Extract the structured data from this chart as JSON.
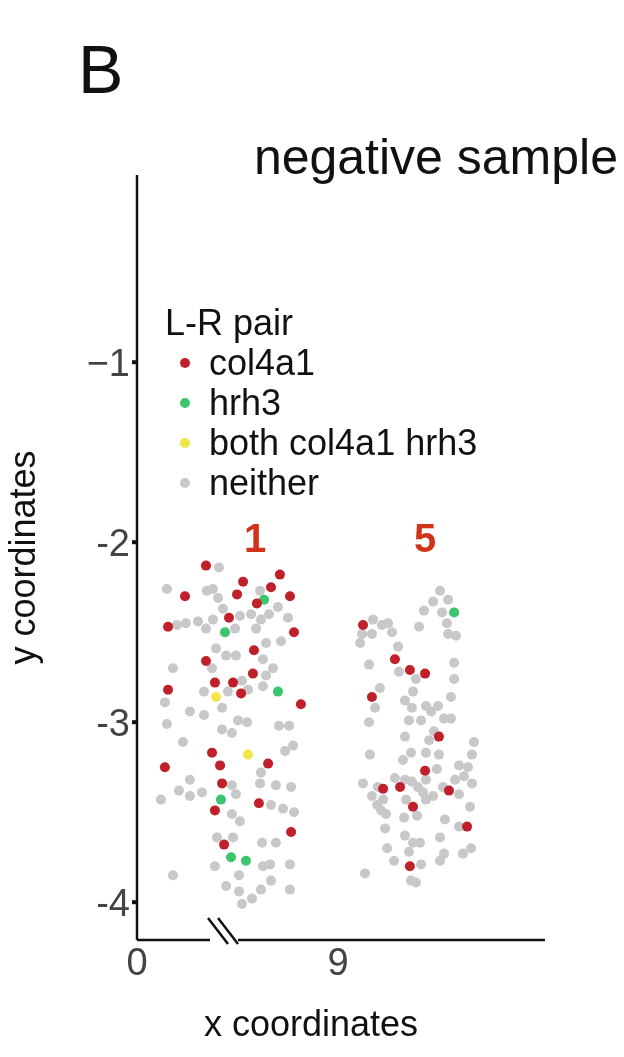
{
  "chart_data": {
    "type": "scatter",
    "title": "negative sample",
    "xlabel": "x coordinates",
    "ylabel": "y coordinates",
    "legend_title": "L-R pair",
    "legend": "top left",
    "marker": "circle",
    "xlim": [
      0,
      18.27
    ],
    "ylim": [
      -4.21,
      0.04
    ],
    "xticks": [
      0,
      9
    ],
    "yticks": [
      {
        "value": -1,
        "label": "−1"
      },
      -2,
      -3,
      -4
    ],
    "annotations": [
      "B",
      "1",
      "5"
    ],
    "series": [
      {
        "name": "col4a1",
        "color": "#c0202a",
        "x": [
          3.09,
          2.15,
          4.75,
          6.4,
          4.48,
          6.0,
          5.37,
          6.85,
          4.12,
          1.39,
          7.03,
          5.24,
          3.09,
          5.19,
          3.49,
          4.3,
          1.39,
          4.66,
          7.34,
          3.36,
          1.25,
          3.72,
          5.87,
          3.81,
          5.46,
          3.49,
          6.9,
          3.9,
          10.12,
          11.55,
          12.22,
          12.9,
          10.52,
          13.52,
          12.9,
          11.02,
          11.78,
          13.97,
          12.36,
          14.78,
          12.22
        ],
        "values": [
          -2.13,
          -2.3,
          -2.22,
          -2.18,
          -2.29,
          -2.25,
          -2.34,
          -2.3,
          -2.42,
          -2.47,
          -2.5,
          -2.6,
          -2.66,
          -2.73,
          -2.78,
          -2.78,
          -2.82,
          -2.84,
          -2.9,
          -3.17,
          -3.25,
          -3.24,
          -3.23,
          -3.34,
          -3.45,
          -3.49,
          -3.61,
          -3.68,
          -2.46,
          -2.65,
          -2.71,
          -2.73,
          -2.86,
          -3.08,
          -3.27,
          -3.37,
          -3.36,
          -3.38,
          -3.47,
          -3.58,
          -3.8
        ]
      },
      {
        "name": "hrh3",
        "color": "#3cc46e",
        "x": [
          5.69,
          3.94,
          6.31,
          3.76,
          4.21,
          4.88,
          14.2
        ],
        "values": [
          -2.32,
          -2.5,
          -2.83,
          -3.43,
          -3.75,
          -3.77,
          -2.39
        ]
      },
      {
        "name": "both col4a1 hrh3",
        "color": "#f0e64a",
        "x": [
          3.54,
          4.97
        ],
        "values": [
          -2.86,
          -3.18
        ]
      },
      {
        "name": "neither",
        "color": "#c8c8c8",
        "x": [
          3.67,
          1.34,
          3.13,
          3.4,
          3.63,
          5.51,
          6.31,
          3.85,
          4.61,
          5.11,
          5.91,
          6.76,
          5.55,
          1.79,
          2.19,
          2.73,
          3.4,
          3.09,
          4.39,
          5.33,
          5.78,
          6.45,
          3.54,
          3.99,
          4.43,
          5.64,
          1.61,
          3.36,
          6.09,
          5.78,
          4.7,
          4.97,
          5.64,
          3.0,
          4.07,
          1.25,
          2.37,
          3.0,
          3.81,
          1.34,
          4.52,
          4.93,
          6.36,
          6.81,
          3.81,
          4.25,
          2.06,
          6.63,
          6.99,
          5.55,
          2.37,
          4.25,
          5.51,
          6.22,
          6.9,
          1.88,
          2.37,
          2.91,
          1.07,
          4.43,
          4.25,
          4.61,
          6.0,
          6.54,
          7.03,
          3.58,
          4.3,
          5.6,
          6.22,
          3.49,
          5.64,
          5.96,
          6.85,
          1.61,
          4.57,
          6.0,
          3.99,
          4.57,
          5.55,
          6.85,
          5.15,
          4.7,
          13.57,
          13.26,
          13.93,
          12.85,
          13.66,
          13.88,
          10.57,
          10.97,
          11.24,
          11.42,
          12.63,
          10.08,
          10.52,
          9.99,
          13.93,
          14.28,
          11.69,
          10.39,
          14.2,
          11.73,
          12.49,
          14.2,
          10.88,
          12.36,
          14.06,
          12.0,
          10.66,
          12.31,
          12.94,
          13.48,
          13.17,
          10.39,
          12.18,
          12.72,
          13.75,
          14.06,
          12.0,
          13.3,
          13.08,
          15.09,
          10.43,
          12.27,
          12.94,
          13.52,
          11.91,
          15.0,
          13.43,
          14.42,
          14.82,
          14.64,
          12.94,
          11.55,
          12.0,
          12.31,
          10.12,
          10.79,
          12.58,
          13.7,
          14.24,
          15.0,
          10.52,
          11.02,
          12.81,
          13.26,
          14.42,
          12.05,
          12.94,
          10.75,
          10.93,
          11.15,
          11.96,
          12.54,
          14.91,
          13.79,
          14.42,
          11.11,
          12.0,
          13.57,
          12.36,
          12.67,
          14.96,
          11.2,
          12.18,
          13.75,
          14.6,
          13.57,
          11.51,
          12.72,
          10.21,
          12.27,
          12.49
        ],
        "values": [
          -2.14,
          -2.26,
          -2.27,
          -2.26,
          -2.31,
          -2.27,
          -2.36,
          -2.37,
          -2.41,
          -2.4,
          -2.4,
          -2.42,
          -2.43,
          -2.46,
          -2.45,
          -2.44,
          -2.43,
          -2.48,
          -2.48,
          -2.48,
          -2.56,
          -2.55,
          -2.59,
          -2.63,
          -2.63,
          -2.65,
          -2.7,
          -2.7,
          -2.7,
          -2.74,
          -2.77,
          -2.82,
          -2.8,
          -2.83,
          -2.83,
          -2.89,
          -2.94,
          -2.96,
          -2.92,
          -3.01,
          -2.99,
          -3.0,
          -3.02,
          -3.02,
          -3.04,
          -3.06,
          -3.11,
          -3.16,
          -3.13,
          -3.28,
          -3.32,
          -3.35,
          -3.34,
          -3.35,
          -3.36,
          -3.38,
          -3.41,
          -3.39,
          -3.43,
          -3.4,
          -3.51,
          -3.55,
          -3.46,
          -3.48,
          -3.5,
          -3.64,
          -3.64,
          -3.67,
          -3.67,
          -3.8,
          -3.8,
          -3.79,
          -3.79,
          -3.85,
          -3.85,
          -3.88,
          -3.91,
          -3.94,
          -3.93,
          -3.93,
          -3.98,
          -4.01,
          -2.27,
          -2.33,
          -2.32,
          -2.38,
          -2.39,
          -2.45,
          -2.43,
          -2.46,
          -2.45,
          -2.5,
          -2.47,
          -2.51,
          -2.51,
          -2.56,
          -2.51,
          -2.52,
          -2.58,
          -2.68,
          -2.67,
          -2.72,
          -2.76,
          -2.76,
          -2.81,
          -2.83,
          -2.86,
          -2.88,
          -2.92,
          -2.92,
          -2.91,
          -2.91,
          -2.94,
          -3.0,
          -2.99,
          -2.99,
          -2.98,
          -2.98,
          -3.08,
          -3.05,
          -3.1,
          -3.11,
          -3.18,
          -3.17,
          -3.17,
          -3.18,
          -3.21,
          -3.18,
          -3.26,
          -3.24,
          -3.25,
          -3.3,
          -3.32,
          -3.31,
          -3.32,
          -3.33,
          -3.34,
          -3.36,
          -3.36,
          -3.36,
          -3.32,
          -3.34,
          -3.41,
          -3.43,
          -3.39,
          -3.41,
          -3.4,
          -3.43,
          -3.43,
          -3.46,
          -3.49,
          -3.51,
          -3.53,
          -3.52,
          -3.47,
          -3.54,
          -3.58,
          -3.59,
          -3.63,
          -3.64,
          -3.67,
          -3.67,
          -3.7,
          -3.7,
          -3.72,
          -3.73,
          -3.73,
          -3.77,
          -3.77,
          -3.79,
          -3.84,
          -3.88,
          -3.89
        ]
      }
    ]
  }
}
